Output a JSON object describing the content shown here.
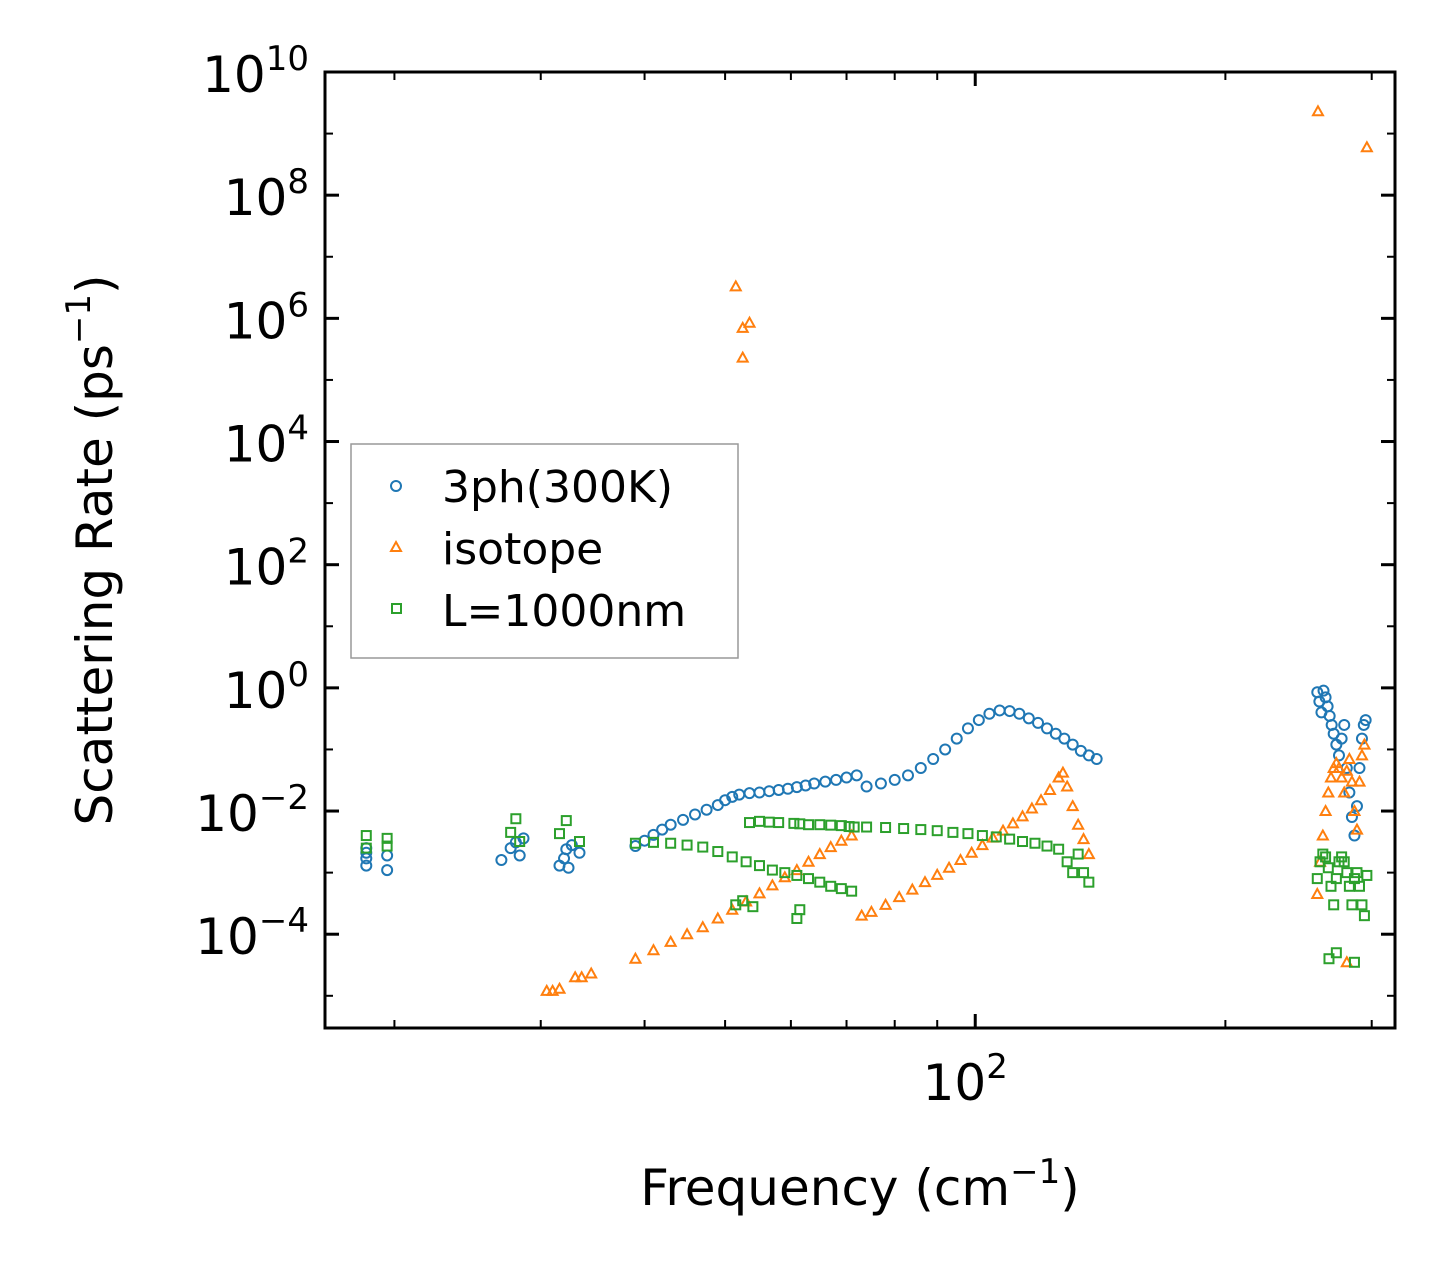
{
  "chart_data": {
    "type": "scatter",
    "title": "",
    "xlabel": {
      "base": "Frequency (cm",
      "sup": "−1",
      "tail": ")"
    },
    "ylabel": {
      "base": "Scattering Rate (ps",
      "sup": "−1",
      "tail": ")"
    },
    "xscale": "log",
    "yscale": "log",
    "xlim": [
      16.5,
      320
    ],
    "ylim": [
      3e-06,
      10000000000.0
    ],
    "x_tick_labels": [
      {
        "value": 100,
        "base": "10",
        "exp": "2"
      }
    ],
    "x_minor_ticks": [
      20,
      30,
      40,
      50,
      60,
      70,
      80,
      90,
      200,
      300
    ],
    "y_tick_labels": [
      {
        "value": 10000000000.0,
        "base": "10",
        "exp": "10"
      },
      {
        "value": 100000000.0,
        "base": "10",
        "exp": "8"
      },
      {
        "value": 1000000.0,
        "base": "10",
        "exp": "6"
      },
      {
        "value": 10000.0,
        "base": "10",
        "exp": "4"
      },
      {
        "value": 100.0,
        "base": "10",
        "exp": "2"
      },
      {
        "value": 1,
        "base": "10",
        "exp": "0"
      },
      {
        "value": 0.01,
        "base": "10",
        "exp": "−2"
      },
      {
        "value": 0.0001,
        "base": "10",
        "exp": "−4"
      }
    ],
    "legend": {
      "placement": "center-left"
    },
    "series": [
      {
        "name": "3ph(300K)",
        "marker": "circle",
        "color": "#1f77b4",
        "x": [
          18.5,
          18.5,
          18.5,
          18.5,
          19.6,
          19.6,
          26.9,
          27.6,
          28.3,
          28.0,
          28.6,
          31.6,
          32.0,
          32.2,
          32.7,
          32.4,
          33.4,
          39.0,
          40.0,
          41.0,
          42.0,
          43.0,
          44.5,
          46.0,
          47.5,
          49.0,
          50.0,
          51.0,
          52.0,
          53.5,
          55.0,
          56.5,
          58.0,
          59.5,
          61.0,
          62.5,
          64.0,
          66.0,
          68.0,
          70.0,
          72.0,
          74.0,
          77.0,
          80.0,
          83.0,
          86.0,
          89.0,
          92.0,
          95.0,
          98.0,
          101.0,
          104.0,
          107.0,
          110.0,
          113.0,
          116.0,
          119.0,
          122.0,
          125.0,
          128.0,
          131.0,
          134.0,
          137.0,
          140.0,
          258.0,
          259.5,
          261.0,
          262.5,
          264.0,
          265.5,
          267.0,
          268.5,
          270.0,
          272.0,
          274.0,
          276.0,
          278.0,
          280.0,
          282.0,
          284.0,
          286.0,
          288.0,
          290.0,
          292.0,
          293.5,
          295.0
        ],
        "y": [
          0.0013,
          0.0017,
          0.0021,
          0.0025,
          0.0011,
          0.0019,
          0.0016,
          0.0025,
          0.0019,
          0.0031,
          0.0036,
          0.0013,
          0.0017,
          0.0024,
          0.0028,
          0.0012,
          0.0021,
          0.0027,
          0.0033,
          0.0041,
          0.005,
          0.006,
          0.0072,
          0.0088,
          0.0105,
          0.0125,
          0.015,
          0.017,
          0.0185,
          0.0195,
          0.02,
          0.021,
          0.022,
          0.023,
          0.0245,
          0.026,
          0.028,
          0.03,
          0.032,
          0.035,
          0.038,
          0.025,
          0.028,
          0.032,
          0.038,
          0.05,
          0.07,
          0.1,
          0.15,
          0.22,
          0.3,
          0.38,
          0.43,
          0.42,
          0.38,
          0.32,
          0.27,
          0.22,
          0.18,
          0.15,
          0.12,
          0.095,
          0.08,
          0.07,
          0.85,
          0.6,
          0.4,
          0.9,
          0.7,
          0.5,
          0.35,
          0.25,
          0.18,
          0.12,
          0.08,
          0.15,
          0.25,
          0.05,
          0.02,
          0.008,
          0.004,
          0.012,
          0.05,
          0.15,
          0.25,
          0.3
        ]
      },
      {
        "name": "isotope",
        "marker": "triangle",
        "color": "#ff7f0e",
        "x": [
          30.5,
          31.0,
          31.6,
          33.0,
          33.6,
          34.5,
          39.0,
          41.0,
          43.0,
          45.0,
          47.0,
          49.0,
          51.0,
          53.0,
          55.0,
          57.0,
          59.0,
          61.0,
          63.0,
          65.0,
          67.0,
          69.0,
          71.0,
          73.0,
          75.0,
          78.0,
          81.0,
          84.0,
          87.0,
          90.0,
          93.0,
          96.0,
          99.0,
          102.0,
          105.0,
          108.0,
          111.0,
          114.0,
          117.0,
          120.0,
          123.0,
          126.0,
          127.5,
          129.0,
          131.0,
          133.0,
          135.0,
          137.0,
          51.5,
          52.5,
          52.5,
          53.5,
          258.0,
          260.0,
          262.0,
          264.0,
          266.0,
          268.0,
          270.0,
          272.0,
          274.0,
          276.0,
          278.0,
          280.0,
          282.0,
          284.0,
          286.0,
          288.0,
          290.0,
          292.0,
          294.0,
          258.5,
          280.0,
          296.0
        ],
        "y": [
          1.2e-05,
          1.2e-05,
          1.3e-05,
          2e-05,
          2e-05,
          2.3e-05,
          4e-05,
          5.5e-05,
          7.5e-05,
          0.0001,
          0.00013,
          0.00018,
          0.00025,
          0.00034,
          0.00046,
          0.00062,
          0.00084,
          0.0011,
          0.0015,
          0.002,
          0.0026,
          0.0033,
          0.004,
          0.0002,
          0.00023,
          0.0003,
          0.0004,
          0.00053,
          0.0007,
          0.00092,
          0.0012,
          0.0016,
          0.0021,
          0.0028,
          0.0037,
          0.0048,
          0.0063,
          0.0082,
          0.011,
          0.015,
          0.022,
          0.035,
          0.042,
          0.025,
          0.012,
          0.006,
          0.0035,
          0.002,
          3300000.0,
          700000.0,
          230000.0,
          850000.0,
          0.00045,
          0.0015,
          0.004,
          0.01,
          0.02,
          0.035,
          0.05,
          0.06,
          0.05,
          0.035,
          0.02,
          0.045,
          0.07,
          0.03,
          0.01,
          0.005,
          0.03,
          0.08,
          0.12,
          2300000000.0,
          3.5e-05,
          600000000.0
        ],
        "labels_note": ""
      },
      {
        "name": "L=1000nm",
        "marker": "square",
        "color": "#2ca02c",
        "x": [
          18.5,
          18.5,
          19.6,
          19.6,
          27.6,
          28.0,
          28.3,
          31.6,
          32.2,
          33.4,
          39.0,
          41.0,
          43.0,
          45.0,
          47.0,
          49.0,
          51.0,
          53.0,
          55.0,
          57.0,
          59.0,
          61.0,
          63.0,
          65.0,
          67.0,
          69.0,
          71.0,
          53.5,
          55.0,
          56.5,
          58.0,
          60.5,
          61.5,
          63.0,
          65.0,
          67.0,
          69.0,
          70.5,
          71.5,
          51.5,
          52.5,
          54.0,
          61.0,
          61.5,
          74.0,
          78.0,
          82.0,
          86.0,
          90.0,
          94.0,
          98.0,
          102.0,
          106.0,
          110.0,
          114.0,
          118.0,
          122.0,
          126.0,
          129.0,
          131.0,
          133.0,
          135.0,
          137.0,
          258.0,
          260.0,
          262.0,
          264.0,
          266.0,
          268.0,
          270.0,
          272.0,
          274.0,
          276.0,
          278.0,
          280.0,
          282.0,
          284.0,
          286.0,
          288.0,
          290.0,
          292.0,
          294.0,
          296.0,
          266.5,
          272.0,
          286.0
        ],
        "y": [
          0.004,
          0.0025,
          0.0036,
          0.0027,
          0.0045,
          0.0075,
          0.0032,
          0.0043,
          0.007,
          0.0032,
          0.003,
          0.0031,
          0.003,
          0.0028,
          0.0026,
          0.0022,
          0.0018,
          0.0015,
          0.0013,
          0.0011,
          0.001,
          0.0009,
          0.0008,
          0.0007,
          0.0006,
          0.00055,
          0.0005,
          0.0065,
          0.0068,
          0.0066,
          0.0065,
          0.0063,
          0.0062,
          0.006,
          0.006,
          0.0059,
          0.0058,
          0.0056,
          0.0055,
          0.0003,
          0.00035,
          0.00028,
          0.00018,
          0.00025,
          0.0055,
          0.0054,
          0.0052,
          0.005,
          0.0048,
          0.0045,
          0.0043,
          0.004,
          0.0038,
          0.0035,
          0.0032,
          0.003,
          0.0027,
          0.0024,
          0.0015,
          0.001,
          0.002,
          0.001,
          0.0007,
          0.0008,
          0.0015,
          0.002,
          0.0018,
          0.0012,
          0.0006,
          0.0003,
          0.0008,
          0.0015,
          0.0018,
          0.0015,
          0.001,
          0.0006,
          0.0003,
          0.0008,
          0.001,
          0.0006,
          0.0003,
          0.0002,
          0.0009,
          4e-05,
          5e-05,
          3.5e-05
        ]
      }
    ]
  }
}
